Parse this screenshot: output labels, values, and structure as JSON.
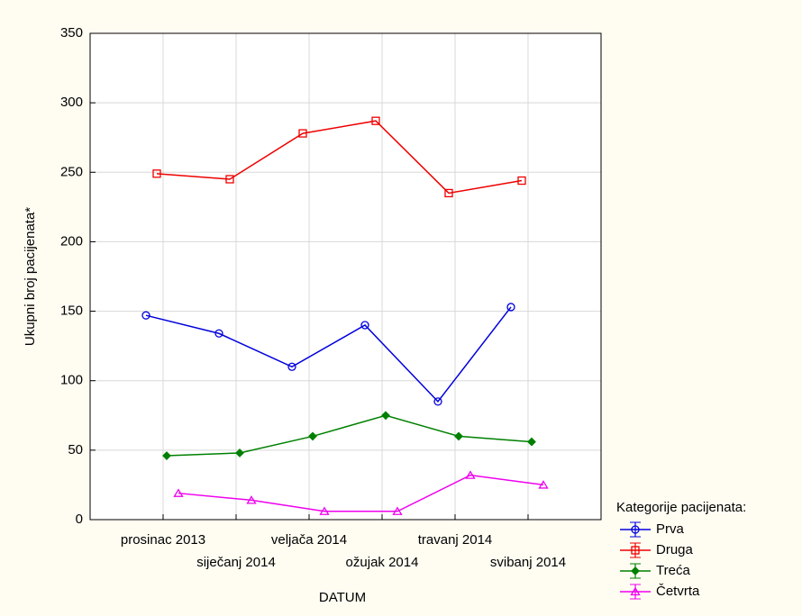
{
  "chart_data": {
    "type": "line",
    "xlabel": "DATUM",
    "ylabel": "Ukupni broj pacijenata*",
    "categories": [
      "prosinac 2013",
      "siječanj 2014",
      "veljača 2014",
      "ožujak 2014",
      "travanj 2014",
      "svibanj 2014"
    ],
    "series": [
      {
        "name": "Prva",
        "color": "#0000dd",
        "marker": "circle",
        "values": [
          147,
          134,
          110,
          140,
          85,
          153
        ]
      },
      {
        "name": "Druga",
        "color": "#ee0000",
        "marker": "square",
        "values": [
          249,
          245,
          278,
          287,
          235,
          244
        ]
      },
      {
        "name": "Treća",
        "color": "#008000",
        "marker": "diamond",
        "values": [
          46,
          48,
          60,
          75,
          60,
          56
        ]
      },
      {
        "name": "Četvrta",
        "color": "#ee00ee",
        "marker": "triangle",
        "values": [
          19,
          14,
          6,
          6,
          32,
          25
        ]
      }
    ],
    "legend_title": "Kategorije pacijenata:",
    "legend": "bottom-right",
    "ylim": [
      0,
      350
    ],
    "yticks": [
      0,
      50,
      100,
      150,
      200,
      250,
      300,
      350
    ],
    "grid": true
  }
}
